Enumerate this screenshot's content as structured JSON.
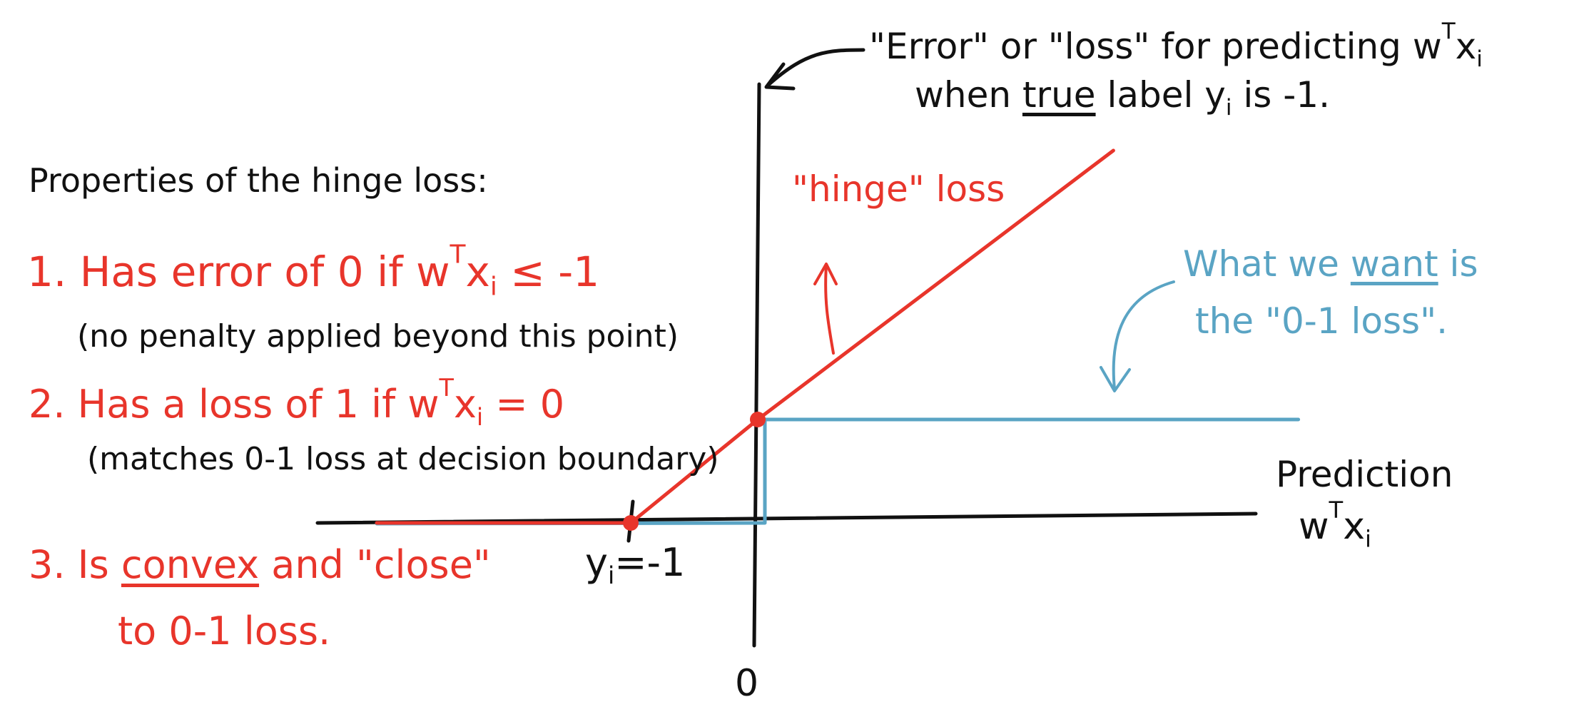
{
  "annotation_top": {
    "line1": {
      "pre": "\"Error\" or \"loss\" for predicting w",
      "sup": "T",
      "post": "x",
      "sub": "i"
    },
    "line2": {
      "pre": "when ",
      "underlined": "true",
      "post": " label y",
      "sub": "i",
      "tail": " is -1."
    }
  },
  "properties": {
    "heading": "Properties of the hinge loss:",
    "p1": {
      "pre": "1. Has error of 0 if w",
      "sup": "T",
      "post": "x",
      "sub": "i",
      "tail": " ≤ -1"
    },
    "p1_note": "(no penalty applied beyond this point)",
    "p2": {
      "pre": "2. Has a loss of 1 if w",
      "sup": "T",
      "post": "x",
      "sub": "i",
      "tail": " = 0"
    },
    "p2_note": "(matches 0-1 loss at decision boundary)",
    "p3": {
      "pre": "3. Is ",
      "underlined": "convex",
      "post": " and \"close\""
    },
    "p3_line2": "to 0-1 loss."
  },
  "hinge_label": "\"hinge\" loss",
  "want_label": {
    "line1_pre": "What we ",
    "line1_underlined": "want",
    "line1_post": " is",
    "line2": "the \"0-1 loss\"."
  },
  "axis": {
    "x_title": "Prediction",
    "x_var": {
      "pre": "w",
      "sup": "T",
      "post": "x",
      "sub": "i"
    },
    "origin_label": "0",
    "tick_label": {
      "pre": "y",
      "sub": "i",
      "post": "=-1"
    }
  },
  "colors": {
    "red": "#e8352b",
    "blue": "#5aa4c4",
    "black": "#111111"
  },
  "chart_data": {
    "type": "line",
    "series": [
      {
        "name": "\"hinge\" loss",
        "x": [
          -3,
          -1,
          0,
          2.8
        ],
        "y": [
          0,
          0,
          1,
          3.6
        ]
      },
      {
        "name": "0-1 loss",
        "x": [
          -3,
          0,
          0,
          4.2
        ],
        "y": [
          0,
          0,
          1,
          1
        ]
      }
    ],
    "points": [
      {
        "x": -1,
        "y": 0
      },
      {
        "x": 0,
        "y": 1
      }
    ]
  }
}
